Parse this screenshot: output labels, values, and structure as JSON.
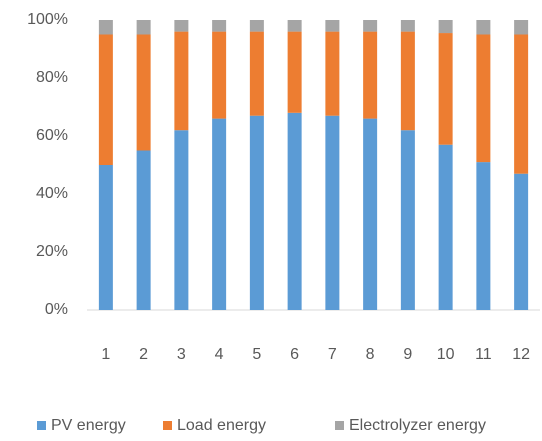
{
  "chart_data": {
    "type": "stacked_bar",
    "categories": [
      "1",
      "2",
      "3",
      "4",
      "5",
      "6",
      "7",
      "8",
      "9",
      "10",
      "11",
      "12"
    ],
    "series": [
      {
        "name": "PV energy",
        "color": "#5b9bd5",
        "values": [
          50,
          55,
          62,
          66,
          67,
          68,
          67,
          66,
          62,
          57,
          51,
          47
        ]
      },
      {
        "name": "Load energy",
        "color": "#ed7d31",
        "values": [
          45,
          40,
          34,
          30,
          29,
          28,
          29,
          30,
          34,
          38.5,
          44,
          48
        ]
      },
      {
        "name": "Electrolyzer energy",
        "color": "#a5a5a5",
        "values": [
          5,
          5,
          4,
          4,
          4,
          4,
          4,
          4,
          4,
          4.5,
          5,
          5
        ]
      }
    ],
    "ylim": [
      0,
      100
    ],
    "yticks": [
      {
        "value": 0,
        "label": "0%"
      },
      {
        "value": 20,
        "label": "20%"
      },
      {
        "value": 40,
        "label": "40%"
      },
      {
        "value": 60,
        "label": "60%"
      },
      {
        "value": 80,
        "label": "80%"
      },
      {
        "value": 100,
        "label": "100%"
      }
    ],
    "grid": false,
    "legend": "bottom"
  }
}
